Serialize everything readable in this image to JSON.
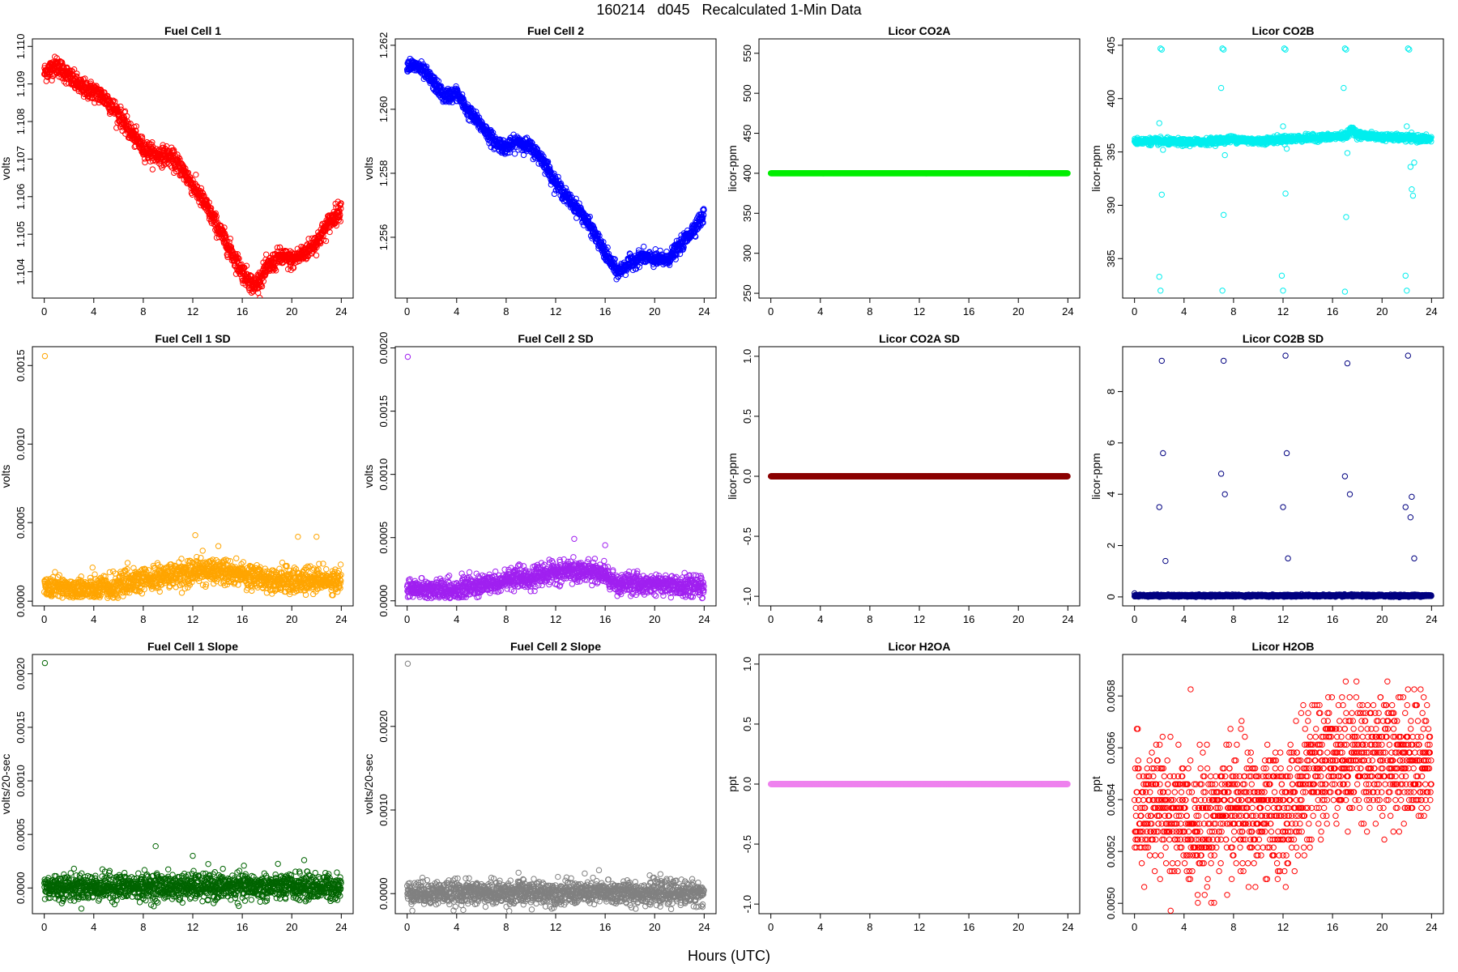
{
  "figure": {
    "title": "160214   d045   Recalculated 1-Min Data",
    "xlabel": "Hours (UTC)"
  },
  "chart_data": [
    {
      "type": "scatter",
      "title": "Fuel Cell 1",
      "ylabel": "volts",
      "color": "#ff0000",
      "ylim": [
        1.1033,
        1.1102
      ],
      "yticks": [
        1.104,
        1.105,
        1.106,
        1.107,
        1.108,
        1.109,
        1.11
      ],
      "ydigits": 3,
      "x": [
        0,
        1,
        2,
        3,
        4,
        5,
        6,
        7,
        8,
        9,
        10,
        11,
        12,
        13,
        14,
        15,
        16,
        17,
        18,
        19,
        20,
        21,
        22,
        23,
        24
      ],
      "y": [
        1.1093,
        1.1095,
        1.1092,
        1.1089,
        1.1088,
        1.1086,
        1.1082,
        1.1077,
        1.1073,
        1.1071,
        1.1071,
        1.1068,
        1.1063,
        1.1058,
        1.1052,
        1.1046,
        1.104,
        1.1036,
        1.1041,
        1.1044,
        1.1043,
        1.1045,
        1.1048,
        1.1053,
        1.1057
      ],
      "noise": 0.00025,
      "dense": true
    },
    {
      "type": "scatter",
      "title": "Fuel Cell 2",
      "ylabel": "volts",
      "color": "#0000ff",
      "ylim": [
        1.2541,
        1.2622
      ],
      "yticks": [
        1.256,
        1.258,
        1.26,
        1.262
      ],
      "ydigits": 3,
      "x": [
        0,
        1,
        2,
        3,
        4,
        5,
        6,
        7,
        8,
        9,
        10,
        11,
        12,
        13,
        14,
        15,
        16,
        17,
        18,
        19,
        20,
        21,
        22,
        23,
        24
      ],
      "y": [
        1.2614,
        1.2613,
        1.2609,
        1.2604,
        1.2605,
        1.2599,
        1.2595,
        1.259,
        1.2588,
        1.259,
        1.2588,
        1.2584,
        1.2577,
        1.2572,
        1.2568,
        1.2562,
        1.2555,
        1.2549,
        1.2552,
        1.2554,
        1.2553,
        1.2553,
        1.2557,
        1.2562,
        1.2567
      ],
      "noise": 0.00022,
      "dense": true
    },
    {
      "type": "scatter",
      "title": "Licor CO2A",
      "ylabel": "licor-ppm",
      "color": "#00ee00",
      "ylim": [
        244,
        568
      ],
      "yticks": [
        250,
        300,
        350,
        400,
        450,
        500,
        550
      ],
      "ydigits": 0,
      "x": [
        0,
        24
      ],
      "y": [
        400,
        400
      ],
      "noise": 0,
      "dense": true
    },
    {
      "type": "scatter",
      "title": "Licor CO2B",
      "ylabel": "licor-ppm",
      "color": "#00eeee",
      "ylim": [
        381.3,
        405.6
      ],
      "yticks": [
        385,
        390,
        395,
        400,
        405
      ],
      "ydigits": 0,
      "x": [
        0,
        2,
        4,
        6,
        8,
        10,
        12,
        14,
        16,
        17.2,
        17.6,
        18,
        20,
        22,
        24
      ],
      "y": [
        396.0,
        396.0,
        395.9,
        396.0,
        396.2,
        396.0,
        396.2,
        396.3,
        396.4,
        396.6,
        397.2,
        396.6,
        396.4,
        396.3,
        396.2
      ],
      "noise": 0.15,
      "dense": true,
      "outliers": [
        [
          2.1,
          404.7
        ],
        [
          2.2,
          404.6
        ],
        [
          2.2,
          391.0
        ],
        [
          2.1,
          382.0
        ],
        [
          2.0,
          383.3
        ],
        [
          2.0,
          397.7
        ],
        [
          2.3,
          395.2
        ],
        [
          7.1,
          404.7
        ],
        [
          7.2,
          404.6
        ],
        [
          7.0,
          401.0
        ],
        [
          7.2,
          389.1
        ],
        [
          7.1,
          382.0
        ],
        [
          7.3,
          394.7
        ],
        [
          12.1,
          404.7
        ],
        [
          12.2,
          404.6
        ],
        [
          12.2,
          391.1
        ],
        [
          12.0,
          382.0
        ],
        [
          11.9,
          383.4
        ],
        [
          12.0,
          397.4
        ],
        [
          12.3,
          395.3
        ],
        [
          17.0,
          404.7
        ],
        [
          17.1,
          404.6
        ],
        [
          16.9,
          401.0
        ],
        [
          17.1,
          388.9
        ],
        [
          17.0,
          381.9
        ],
        [
          17.2,
          394.9
        ],
        [
          22.1,
          404.7
        ],
        [
          22.2,
          404.6
        ],
        [
          22.4,
          391.5
        ],
        [
          22.5,
          390.9
        ],
        [
          22.3,
          393.6
        ],
        [
          22.0,
          382.0
        ],
        [
          21.9,
          383.4
        ],
        [
          22.0,
          397.4
        ],
        [
          22.6,
          394.0
        ]
      ]
    },
    {
      "type": "scatter",
      "title": "Fuel Cell 1 SD",
      "ylabel": "volts",
      "color": "#ffa500",
      "ylim": [
        -3e-05,
        0.00162
      ],
      "yticks": [
        0.0,
        0.0005,
        0.001,
        0.0015
      ],
      "ydigits": 4,
      "x": [
        0,
        2,
        4,
        6,
        8,
        10,
        12,
        14,
        16,
        18,
        20,
        22,
        24
      ],
      "y": [
        9e-05,
        8e-05,
        7e-05,
        0.0001,
        0.00013,
        0.00016,
        0.00019,
        0.0002,
        0.00017,
        0.00014,
        0.00013,
        0.00013,
        0.00013
      ],
      "noise": 4e-05,
      "dense": true,
      "outliers": [
        [
          0.05,
          0.00156
        ],
        [
          12.2,
          0.00042
        ],
        [
          20.5,
          0.00041
        ],
        [
          22.0,
          0.00041
        ]
      ]
    },
    {
      "type": "scatter",
      "title": "Fuel Cell 2 SD",
      "ylabel": "volts",
      "color": "#a020f0",
      "ylim": [
        -4e-05,
        0.00201
      ],
      "yticks": [
        0.0,
        0.0005,
        0.001,
        0.0015,
        0.002
      ],
      "ydigits": 4,
      "x": [
        0,
        2,
        4,
        6,
        8,
        10,
        12,
        14,
        16,
        17,
        18,
        20,
        22,
        24
      ],
      "y": [
        9e-05,
        9e-05,
        9e-05,
        0.00012,
        0.00016,
        0.00019,
        0.00022,
        0.00024,
        0.00021,
        0.00012,
        0.00014,
        0.00013,
        0.00012,
        0.00011
      ],
      "noise": 4e-05,
      "dense": true,
      "outliers": [
        [
          0.05,
          0.00193
        ],
        [
          13.5,
          0.00049
        ],
        [
          16.0,
          0.00044
        ]
      ]
    },
    {
      "type": "scatter",
      "title": "Licor CO2A SD",
      "ylabel": "licor-ppm",
      "color": "#8b0000",
      "ylim": [
        -1.08,
        1.08
      ],
      "yticks": [
        -1.0,
        -0.5,
        0.0,
        0.5,
        1.0
      ],
      "ydigits": 1,
      "x": [
        0,
        24
      ],
      "y": [
        0,
        0
      ],
      "noise": 0,
      "dense": true
    },
    {
      "type": "scatter",
      "title": "Licor CO2B SD",
      "ylabel": "licor-ppm",
      "color": "#000080",
      "ylim": [
        -0.35,
        9.75
      ],
      "yticks": [
        0,
        2,
        4,
        6,
        8
      ],
      "ydigits": 0,
      "x": [
        0,
        24
      ],
      "y": [
        0.05,
        0.05
      ],
      "noise": 0.02,
      "dense": true,
      "outliers": [
        [
          0.0,
          0.14
        ],
        [
          2.0,
          3.5
        ],
        [
          2.2,
          9.2
        ],
        [
          2.3,
          5.6
        ],
        [
          2.5,
          1.4
        ],
        [
          7.0,
          4.8
        ],
        [
          7.2,
          9.2
        ],
        [
          7.3,
          4.0
        ],
        [
          12.0,
          3.5
        ],
        [
          12.2,
          9.4
        ],
        [
          12.3,
          5.6
        ],
        [
          12.4,
          1.5
        ],
        [
          17.0,
          4.7
        ],
        [
          17.2,
          9.1
        ],
        [
          17.4,
          4.0
        ],
        [
          21.9,
          3.5
        ],
        [
          22.1,
          9.4
        ],
        [
          22.3,
          3.1
        ],
        [
          22.4,
          3.9
        ],
        [
          22.6,
          1.5
        ]
      ]
    },
    {
      "type": "scatter",
      "title": "Fuel Cell 1 Slope",
      "ylabel": "volts/20-sec",
      "color": "#006400",
      "ylim": [
        -0.00024,
        0.00218
      ],
      "yticks": [
        0.0,
        0.0005,
        0.001,
        0.0015,
        0.002
      ],
      "ydigits": 4,
      "x": [
        0,
        24
      ],
      "y": [
        1e-05,
        1e-05
      ],
      "noise": 6e-05,
      "dense": true,
      "outliers": [
        [
          0.05,
          0.0021
        ],
        [
          9.0,
          0.00039
        ],
        [
          12.0,
          0.0003
        ],
        [
          21.0,
          0.00026
        ]
      ]
    },
    {
      "type": "scatter",
      "title": "Fuel Cell 2 Slope",
      "ylabel": "volts/20-sec",
      "color": "#808080",
      "ylim": [
        -0.00024,
        0.00286
      ],
      "yticks": [
        0.0,
        0.001,
        0.002
      ],
      "ydigits": 4,
      "x": [
        0,
        24
      ],
      "y": [
        1e-05,
        1e-05
      ],
      "noise": 7e-05,
      "dense": true,
      "outliers": [
        [
          0.05,
          0.00275
        ],
        [
          9.0,
          0.00025
        ],
        [
          15.5,
          0.00028
        ]
      ]
    },
    {
      "type": "scatter",
      "title": "Licor H2OA",
      "ylabel": "ppt",
      "color": "#ee82ee",
      "ylim": [
        -1.08,
        1.08
      ],
      "yticks": [
        -1.0,
        -0.5,
        0.0,
        0.5,
        1.0
      ],
      "ydigits": 1,
      "x": [
        0,
        24
      ],
      "y": [
        0,
        0
      ],
      "noise": 0,
      "dense": true
    },
    {
      "type": "scatter",
      "title": "Licor H2OB",
      "ylabel": "ppt",
      "color": "#ff0000",
      "ylim": [
        0.00496,
        0.00596
      ],
      "yticks": [
        0.005,
        0.0052,
        0.0054,
        0.0056,
        0.0058
      ],
      "ydigits": 4,
      "x": [
        0,
        2,
        4,
        6,
        8,
        10,
        12,
        14,
        16,
        18,
        20,
        22,
        24
      ],
      "y": [
        0.00533,
        0.00537,
        0.00531,
        0.00532,
        0.00538,
        0.00534,
        0.00534,
        0.00547,
        0.00557,
        0.00557,
        0.00557,
        0.00556,
        0.00553
      ],
      "noise": 0.00012,
      "dense": true,
      "quantize": 3.05e-05
    }
  ]
}
